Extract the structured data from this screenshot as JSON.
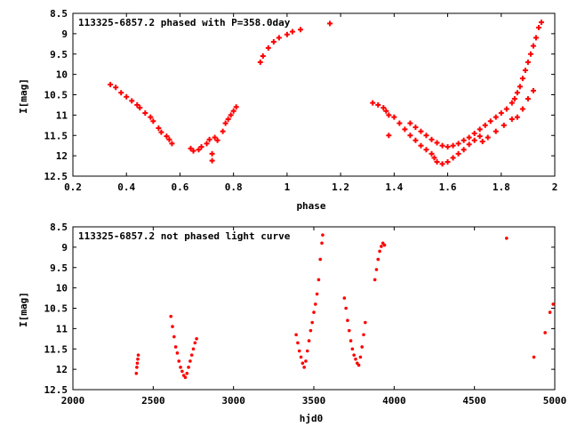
{
  "chart_data": [
    {
      "type": "scatter",
      "title": "113325-6857.2 phased with P=358.0day",
      "xlabel": "phase",
      "ylabel": "I[mag]",
      "xlim": [
        0.2,
        2.0
      ],
      "ylim": [
        12.5,
        8.5
      ],
      "y_inverted": true,
      "xticks": [
        "0.2",
        "0.4",
        "0.6",
        "0.8",
        "1",
        "1.2",
        "1.4",
        "1.6",
        "1.8",
        "2"
      ],
      "yticks": [
        "8.5",
        "9",
        "9.5",
        "10",
        "10.5",
        "11",
        "11.5",
        "12",
        "12.5"
      ],
      "series": [
        {
          "color": "#ff0000",
          "marker": "plus",
          "points": [
            [
              0.34,
              10.25
            ],
            [
              0.36,
              10.32
            ],
            [
              0.38,
              10.45
            ],
            [
              0.4,
              10.55
            ],
            [
              0.42,
              10.65
            ],
            [
              0.44,
              10.75
            ],
            [
              0.45,
              10.82
            ],
            [
              0.47,
              10.95
            ],
            [
              0.49,
              11.05
            ],
            [
              0.5,
              11.15
            ],
            [
              0.52,
              11.32
            ],
            [
              0.53,
              11.42
            ],
            [
              0.55,
              11.52
            ],
            [
              0.56,
              11.6
            ],
            [
              0.57,
              11.7
            ],
            [
              0.64,
              11.82
            ],
            [
              0.65,
              11.88
            ],
            [
              0.67,
              11.85
            ],
            [
              0.68,
              11.78
            ],
            [
              0.7,
              11.7
            ],
            [
              0.71,
              11.6
            ],
            [
              0.72,
              11.95
            ],
            [
              0.72,
              12.12
            ],
            [
              0.73,
              11.55
            ],
            [
              0.74,
              11.62
            ],
            [
              0.76,
              11.4
            ],
            [
              0.77,
              11.2
            ],
            [
              0.78,
              11.1
            ],
            [
              0.79,
              11.0
            ],
            [
              0.8,
              10.9
            ],
            [
              0.81,
              10.8
            ],
            [
              0.9,
              9.7
            ],
            [
              0.91,
              9.55
            ],
            [
              0.93,
              9.35
            ],
            [
              0.95,
              9.2
            ],
            [
              0.97,
              9.1
            ],
            [
              1.0,
              9.02
            ],
            [
              1.02,
              8.95
            ],
            [
              1.05,
              8.9
            ],
            [
              1.16,
              8.75
            ],
            [
              1.32,
              10.7
            ],
            [
              1.34,
              10.75
            ],
            [
              1.36,
              10.82
            ],
            [
              1.37,
              10.9
            ],
            [
              1.38,
              11.0
            ],
            [
              1.4,
              11.05
            ],
            [
              1.38,
              11.5
            ],
            [
              1.42,
              11.2
            ],
            [
              1.44,
              11.35
            ],
            [
              1.46,
              11.5
            ],
            [
              1.48,
              11.62
            ],
            [
              1.5,
              11.75
            ],
            [
              1.52,
              11.85
            ],
            [
              1.54,
              11.95
            ],
            [
              1.55,
              12.05
            ],
            [
              1.56,
              12.15
            ],
            [
              1.58,
              12.2
            ],
            [
              1.6,
              12.15
            ],
            [
              1.62,
              12.05
            ],
            [
              1.64,
              11.95
            ],
            [
              1.66,
              11.85
            ],
            [
              1.68,
              11.72
            ],
            [
              1.7,
              11.62
            ],
            [
              1.72,
              11.52
            ],
            [
              1.46,
              11.2
            ],
            [
              1.48,
              11.3
            ],
            [
              1.5,
              11.4
            ],
            [
              1.52,
              11.5
            ],
            [
              1.54,
              11.6
            ],
            [
              1.56,
              11.68
            ],
            [
              1.58,
              11.75
            ],
            [
              1.6,
              11.78
            ],
            [
              1.62,
              11.75
            ],
            [
              1.64,
              11.7
            ],
            [
              1.66,
              11.62
            ],
            [
              1.68,
              11.55
            ],
            [
              1.7,
              11.45
            ],
            [
              1.72,
              11.35
            ],
            [
              1.74,
              11.25
            ],
            [
              1.76,
              11.15
            ],
            [
              1.78,
              11.05
            ],
            [
              1.8,
              10.95
            ],
            [
              1.82,
              10.85
            ],
            [
              1.84,
              10.7
            ],
            [
              1.85,
              10.6
            ],
            [
              1.86,
              10.45
            ],
            [
              1.87,
              10.3
            ],
            [
              1.88,
              10.1
            ],
            [
              1.89,
              9.9
            ],
            [
              1.9,
              9.7
            ],
            [
              1.91,
              9.5
            ],
            [
              1.92,
              9.3
            ],
            [
              1.93,
              9.1
            ],
            [
              1.94,
              8.85
            ],
            [
              1.95,
              8.72
            ],
            [
              1.73,
              11.65
            ],
            [
              1.75,
              11.55
            ],
            [
              1.78,
              11.4
            ],
            [
              1.81,
              11.25
            ],
            [
              1.84,
              11.1
            ],
            [
              1.86,
              11.05
            ],
            [
              1.88,
              10.85
            ],
            [
              1.9,
              10.6
            ],
            [
              1.92,
              10.4
            ]
          ]
        }
      ]
    },
    {
      "type": "scatter",
      "title": "113325-6857.2 not phased light curve",
      "xlabel": "hjd0",
      "ylabel": "I[mag]",
      "xlim": [
        2000,
        5000
      ],
      "ylim": [
        12.5,
        8.5
      ],
      "y_inverted": true,
      "xticks": [
        "2000",
        "2500",
        "3000",
        "3500",
        "4000",
        "4500",
        "5000"
      ],
      "yticks": [
        "8.5",
        "9",
        "9.5",
        "10",
        "10.5",
        "11",
        "11.5",
        "12",
        "12.5"
      ],
      "series": [
        {
          "color": "#ff0000",
          "marker": "dot",
          "points": [
            [
              2395,
              12.1
            ],
            [
              2398,
              11.95
            ],
            [
              2401,
              11.85
            ],
            [
              2404,
              11.75
            ],
            [
              2407,
              11.65
            ],
            [
              2610,
              10.7
            ],
            [
              2620,
              10.95
            ],
            [
              2630,
              11.2
            ],
            [
              2640,
              11.45
            ],
            [
              2650,
              11.6
            ],
            [
              2660,
              11.8
            ],
            [
              2670,
              11.95
            ],
            [
              2680,
              12.05
            ],
            [
              2690,
              12.15
            ],
            [
              2700,
              12.2
            ],
            [
              2710,
              12.1
            ],
            [
              2720,
              11.95
            ],
            [
              2730,
              11.8
            ],
            [
              2740,
              11.65
            ],
            [
              2750,
              11.5
            ],
            [
              2760,
              11.35
            ],
            [
              2770,
              11.25
            ],
            [
              3390,
              11.15
            ],
            [
              3400,
              11.35
            ],
            [
              3410,
              11.55
            ],
            [
              3420,
              11.7
            ],
            [
              3430,
              11.85
            ],
            [
              3440,
              11.95
            ],
            [
              3450,
              11.8
            ],
            [
              3460,
              11.55
            ],
            [
              3470,
              11.3
            ],
            [
              3480,
              11.05
            ],
            [
              3490,
              10.85
            ],
            [
              3500,
              10.6
            ],
            [
              3510,
              10.4
            ],
            [
              3520,
              10.15
            ],
            [
              3530,
              9.8
            ],
            [
              3540,
              9.3
            ],
            [
              3550,
              8.9
            ],
            [
              3555,
              8.7
            ],
            [
              3690,
              10.25
            ],
            [
              3700,
              10.5
            ],
            [
              3710,
              10.8
            ],
            [
              3720,
              11.05
            ],
            [
              3730,
              11.3
            ],
            [
              3740,
              11.5
            ],
            [
              3750,
              11.65
            ],
            [
              3760,
              11.75
            ],
            [
              3770,
              11.85
            ],
            [
              3780,
              11.9
            ],
            [
              3790,
              11.7
            ],
            [
              3800,
              11.45
            ],
            [
              3810,
              11.15
            ],
            [
              3820,
              10.85
            ],
            [
              3880,
              9.8
            ],
            [
              3890,
              9.55
            ],
            [
              3900,
              9.3
            ],
            [
              3910,
              9.1
            ],
            [
              3920,
              8.98
            ],
            [
              3930,
              8.9
            ],
            [
              3940,
              8.95
            ],
            [
              4700,
              8.78
            ],
            [
              4870,
              11.7
            ],
            [
              4940,
              11.1
            ],
            [
              4970,
              10.6
            ],
            [
              4990,
              10.4
            ]
          ]
        }
      ]
    }
  ]
}
